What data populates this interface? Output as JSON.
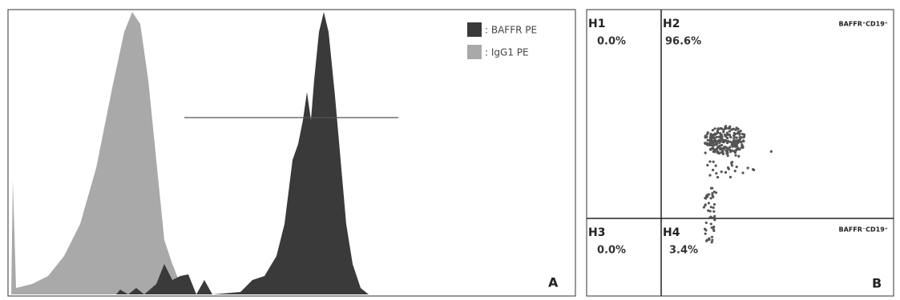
{
  "chart_data": [
    {
      "type": "histogram-overlay",
      "series": [
        {
          "name": ": BAFFR PE",
          "color": "#3a3a3a"
        },
        {
          "name": ": IgG1 PE",
          "color": "#a9a9a9"
        }
      ],
      "panel_label": "A"
    },
    {
      "type": "quadrant-scatter",
      "quadrants": [
        "H1",
        "H2",
        "H3",
        "H4"
      ],
      "values": [
        0.0,
        96.6,
        0.0,
        3.4
      ],
      "value_labels": [
        "0.0%",
        "96.6%",
        "0.0%",
        "3.4%"
      ],
      "annotations": [
        "BAFFR⁺CD19⁺",
        "BAFFR⁻CD19⁺"
      ],
      "panel_label": "B"
    }
  ]
}
